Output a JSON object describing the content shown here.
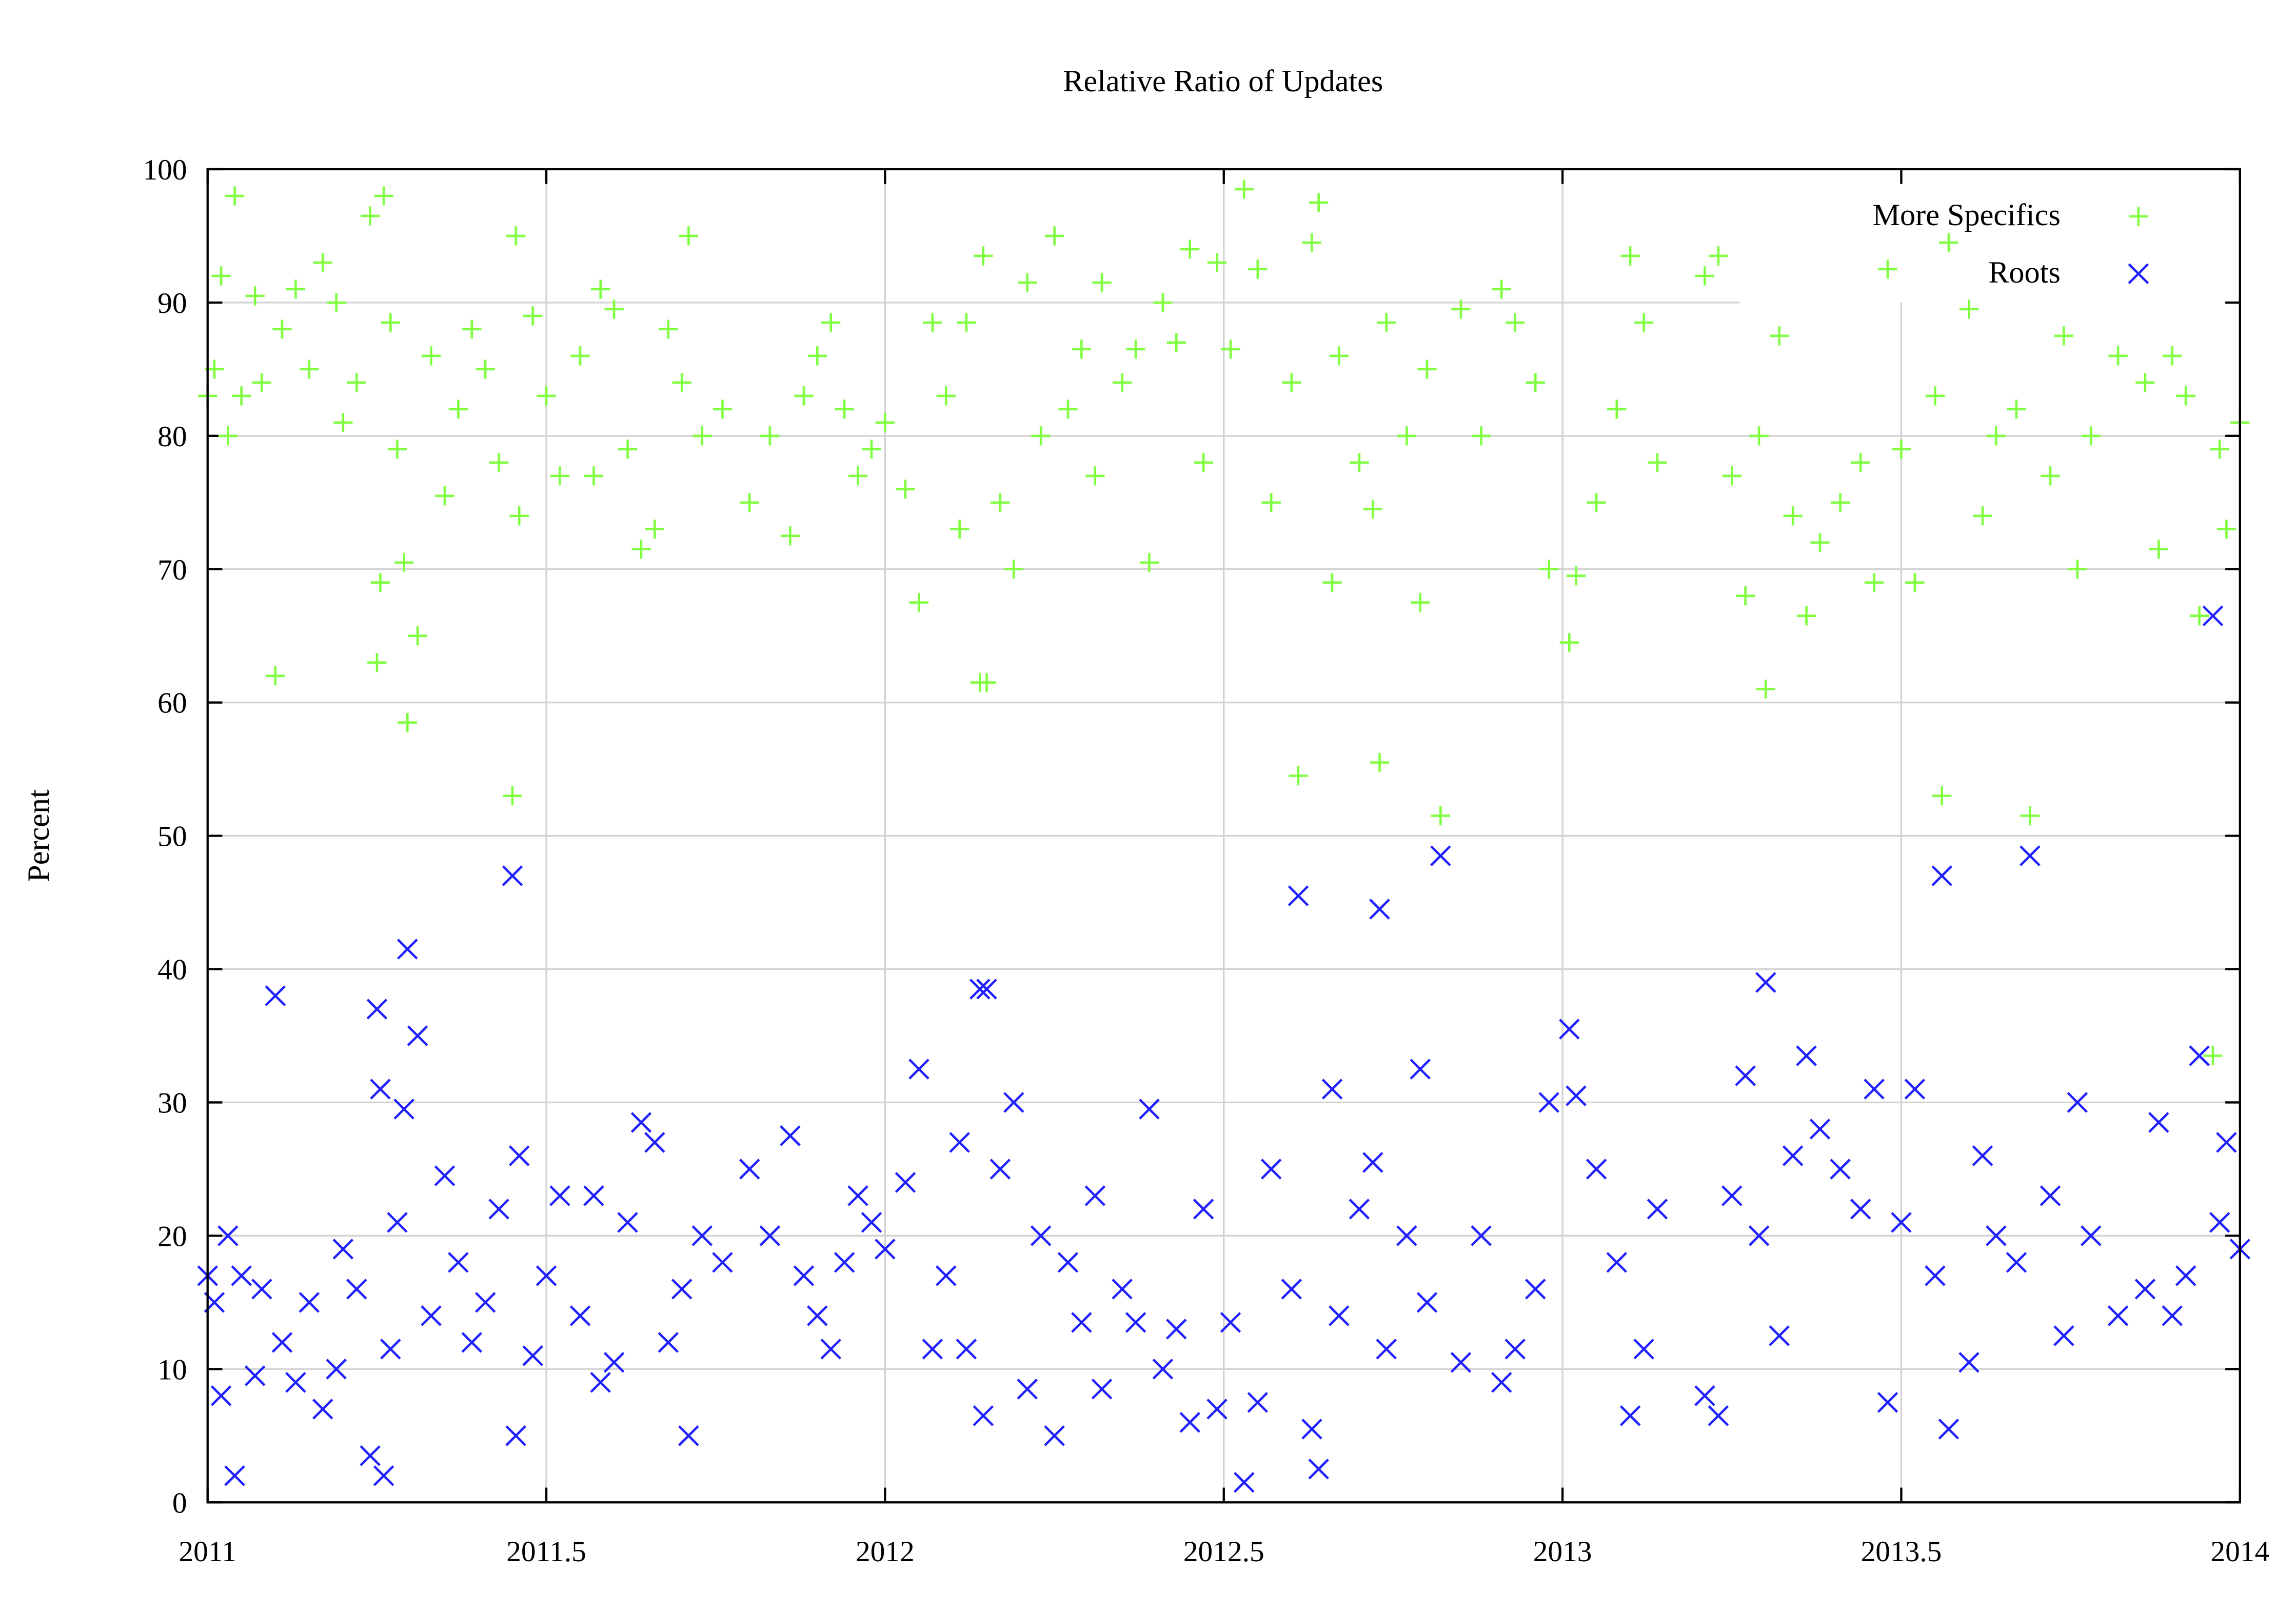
{
  "chart_data": {
    "type": "scatter",
    "title": "Relative Ratio of Updates",
    "xlabel": "",
    "ylabel": "Percent",
    "xlim": [
      2011,
      2014
    ],
    "ylim": [
      0,
      100
    ],
    "x_ticks": [
      "2011",
      "2011.5",
      "2012",
      "2012.5",
      "2013",
      "2013.5",
      "2014"
    ],
    "y_ticks": [
      "0",
      "10",
      "20",
      "30",
      "40",
      "50",
      "60",
      "70",
      "80",
      "90",
      "100"
    ],
    "grid": true,
    "legend_position": "top-right",
    "x": [
      2011.0,
      2011.01,
      2011.02,
      2011.03,
      2011.04,
      2011.05,
      2011.07,
      2011.08,
      2011.1,
      2011.11,
      2011.13,
      2011.15,
      2011.17,
      2011.19,
      2011.2,
      2011.22,
      2011.24,
      2011.25,
      2011.255,
      2011.26,
      2011.27,
      2011.28,
      2011.29,
      2011.295,
      2011.31,
      2011.33,
      2011.35,
      2011.37,
      2011.39,
      2011.41,
      2011.43,
      2011.45,
      2011.455,
      2011.46,
      2011.48,
      2011.5,
      2011.52,
      2011.55,
      2011.57,
      2011.58,
      2011.6,
      2011.62,
      2011.64,
      2011.66,
      2011.68,
      2011.7,
      2011.71,
      2011.73,
      2011.76,
      2011.8,
      2011.83,
      2011.86,
      2011.88,
      2011.9,
      2011.92,
      2011.94,
      2011.96,
      2011.98,
      2012.0,
      2012.03,
      2012.05,
      2012.07,
      2012.09,
      2012.11,
      2012.12,
      2012.14,
      2012.145,
      2012.15,
      2012.17,
      2012.19,
      2012.21,
      2012.23,
      2012.25,
      2012.27,
      2012.29,
      2012.31,
      2012.32,
      2012.35,
      2012.37,
      2012.39,
      2012.41,
      2012.43,
      2012.45,
      2012.47,
      2012.49,
      2012.51,
      2012.53,
      2012.55,
      2012.57,
      2012.6,
      2012.61,
      2012.63,
      2012.64,
      2012.66,
      2012.67,
      2012.7,
      2012.72,
      2012.73,
      2012.74,
      2012.77,
      2012.79,
      2012.8,
      2012.82,
      2012.85,
      2012.88,
      2012.91,
      2012.93,
      2012.96,
      2012.98,
      2013.01,
      2013.02,
      2013.05,
      2013.08,
      2013.1,
      2013.12,
      2013.14,
      2013.21,
      2013.23,
      2013.25,
      2013.27,
      2013.29,
      2013.3,
      2013.32,
      2013.34,
      2013.36,
      2013.38,
      2013.41,
      2013.44,
      2013.46,
      2013.48,
      2013.5,
      2013.52,
      2013.55,
      2013.56,
      2013.57,
      2013.6,
      2013.62,
      2013.64,
      2013.67,
      2013.69,
      2013.72,
      2013.74,
      2013.76,
      2013.78,
      2013.82,
      2013.86,
      2013.88,
      2013.9,
      2013.92,
      2013.94,
      2013.96,
      2013.97,
      2013.98,
      2014.0
    ],
    "series": [
      {
        "name": "More Specifics",
        "color": "#80ff40",
        "marker": "plus",
        "values": [
          83,
          85,
          92,
          80,
          98,
          83,
          90.5,
          84,
          62,
          88,
          91,
          85,
          93,
          90,
          81,
          84,
          96.5,
          63,
          69,
          98,
          88.5,
          79,
          70.5,
          58.5,
          65,
          86,
          75.5,
          82,
          88,
          85,
          78,
          53,
          95,
          74,
          89,
          83,
          77,
          86,
          77,
          91,
          89.5,
          79,
          71.5,
          73,
          88,
          84,
          95,
          80,
          82,
          75,
          80,
          72.5,
          83,
          86,
          88.5,
          82,
          77,
          79,
          81,
          76,
          67.5,
          88.5,
          83,
          73,
          88.5,
          61.5,
          93.5,
          61.5,
          75,
          70,
          91.5,
          80,
          95,
          82,
          86.5,
          77,
          91.5,
          84,
          86.5,
          70.5,
          90,
          87,
          94,
          78,
          93,
          86.5,
          98.5,
          92.5,
          75,
          84,
          54.5,
          94.5,
          97.5,
          69,
          86,
          78,
          74.5,
          55.5,
          88.5,
          80,
          67.5,
          85,
          51.5,
          89.5,
          80,
          91,
          88.5,
          84,
          70,
          64.5,
          69.5,
          75,
          82,
          93.5,
          88.5,
          78,
          92,
          93.5,
          77,
          68,
          80,
          61,
          87.5,
          74,
          66.5,
          72,
          75,
          78,
          69,
          92.5,
          79,
          69,
          83,
          53,
          94.5,
          89.5,
          74,
          80,
          82,
          51.5,
          77,
          87.5,
          70,
          80,
          86,
          84,
          71.5,
          86,
          83,
          66.5,
          33.5,
          79,
          73,
          81
        ]
      },
      {
        "name": "Roots",
        "color": "#2020ff",
        "marker": "cross",
        "values": [
          17,
          15,
          8,
          20,
          2,
          17,
          9.5,
          16,
          38,
          12,
          9,
          15,
          7,
          10,
          19,
          16,
          3.5,
          37,
          31,
          2,
          11.5,
          21,
          29.5,
          41.5,
          35,
          14,
          24.5,
          18,
          12,
          15,
          22,
          47,
          5,
          26,
          11,
          17,
          23,
          14,
          23,
          9,
          10.5,
          21,
          28.5,
          27,
          12,
          16,
          5,
          20,
          18,
          25,
          20,
          27.5,
          17,
          14,
          11.5,
          18,
          23,
          21,
          19,
          24,
          32.5,
          11.5,
          17,
          27,
          11.5,
          38.5,
          6.5,
          38.5,
          25,
          30,
          8.5,
          20,
          5,
          18,
          13.5,
          23,
          8.5,
          16,
          13.5,
          29.5,
          10,
          13,
          6,
          22,
          7,
          13.5,
          1.5,
          7.5,
          25,
          16,
          45.5,
          5.5,
          2.5,
          31,
          14,
          22,
          25.5,
          44.5,
          11.5,
          20,
          32.5,
          15,
          48.5,
          10.5,
          20,
          9,
          11.5,
          16,
          30,
          35.5,
          30.5,
          25,
          18,
          6.5,
          11.5,
          22,
          8,
          6.5,
          23,
          32,
          20,
          39,
          12.5,
          26,
          33.5,
          28,
          25,
          22,
          31,
          7.5,
          21,
          31,
          17,
          47,
          5.5,
          10.5,
          26,
          20,
          18,
          48.5,
          23,
          12.5,
          30,
          20,
          14,
          16,
          28.5,
          14,
          17,
          33.5,
          66.5,
          21,
          27,
          19
        ]
      }
    ]
  }
}
